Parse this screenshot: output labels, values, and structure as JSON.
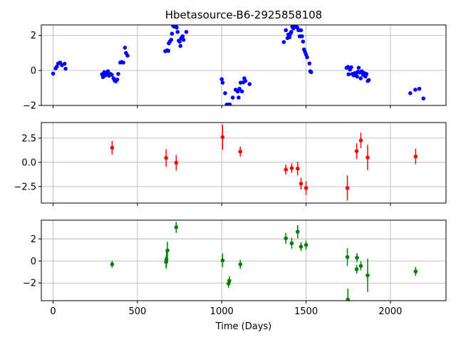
{
  "chart_data": {
    "type": "scatter",
    "title": "Hbetasource-B6-2925858108",
    "xlabel": "Time (Days)",
    "xlim": [
      -70,
      2330
    ],
    "xticks": [
      0,
      500,
      1000,
      1500,
      2000
    ],
    "grid": true,
    "panels": [
      {
        "name": "panel-1",
        "color": "#0000ff",
        "ylim": [
          -2.0,
          2.6
        ],
        "yticks": [
          -2,
          0,
          2
        ],
        "ytick_labels": [
          "−2",
          "0",
          "2"
        ],
        "points": [
          {
            "x": 0,
            "y": -0.18
          },
          {
            "x": 15,
            "y": 0.12
          },
          {
            "x": 22,
            "y": 0.22
          },
          {
            "x": 30,
            "y": 0.4
          },
          {
            "x": 42,
            "y": 0.45
          },
          {
            "x": 52,
            "y": 0.3
          },
          {
            "x": 68,
            "y": 0.38
          },
          {
            "x": 74,
            "y": 0.1
          },
          {
            "x": 290,
            "y": -0.22
          },
          {
            "x": 296,
            "y": -0.38
          },
          {
            "x": 303,
            "y": -0.1
          },
          {
            "x": 310,
            "y": -0.28
          },
          {
            "x": 318,
            "y": -0.15
          },
          {
            "x": 325,
            "y": -0.05
          },
          {
            "x": 332,
            "y": -0.3
          },
          {
            "x": 340,
            "y": -0.2
          },
          {
            "x": 348,
            "y": -0.25
          },
          {
            "x": 358,
            "y": -0.45
          },
          {
            "x": 365,
            "y": -0.58
          },
          {
            "x": 372,
            "y": -0.62
          },
          {
            "x": 380,
            "y": -0.52
          },
          {
            "x": 386,
            "y": -0.2
          },
          {
            "x": 398,
            "y": 0.45
          },
          {
            "x": 406,
            "y": 0.48
          },
          {
            "x": 416,
            "y": 0.45
          },
          {
            "x": 426,
            "y": 1.3
          },
          {
            "x": 432,
            "y": 1.0
          },
          {
            "x": 441,
            "y": 0.85
          },
          {
            "x": 665,
            "y": 1.1
          },
          {
            "x": 676,
            "y": 1.15
          },
          {
            "x": 683,
            "y": 1.12
          },
          {
            "x": 686,
            "y": 1.55
          },
          {
            "x": 692,
            "y": 1.65
          },
          {
            "x": 700,
            "y": 1.75
          },
          {
            "x": 705,
            "y": 2.1
          },
          {
            "x": 712,
            "y": 2.55
          },
          {
            "x": 718,
            "y": 2.5
          },
          {
            "x": 726,
            "y": 2.55
          },
          {
            "x": 733,
            "y": 2.45
          },
          {
            "x": 738,
            "y": 2.2
          },
          {
            "x": 745,
            "y": 1.7
          },
          {
            "x": 750,
            "y": 1.65
          },
          {
            "x": 755,
            "y": 1.4
          },
          {
            "x": 760,
            "y": 1.85
          },
          {
            "x": 768,
            "y": 1.95
          },
          {
            "x": 773,
            "y": 1.75
          },
          {
            "x": 790,
            "y": 2.2
          },
          {
            "x": 1000,
            "y": -0.5
          },
          {
            "x": 1005,
            "y": -0.7
          },
          {
            "x": 1020,
            "y": -1.3
          },
          {
            "x": 1030,
            "y": -1.95
          },
          {
            "x": 1040,
            "y": -1.95
          },
          {
            "x": 1048,
            "y": -1.95
          },
          {
            "x": 1065,
            "y": -1.55
          },
          {
            "x": 1082,
            "y": -1.1
          },
          {
            "x": 1095,
            "y": -1.2
          },
          {
            "x": 1100,
            "y": -1.55
          },
          {
            "x": 1105,
            "y": -1.05
          },
          {
            "x": 1112,
            "y": -0.7
          },
          {
            "x": 1120,
            "y": -1.2
          },
          {
            "x": 1128,
            "y": -0.68
          },
          {
            "x": 1134,
            "y": -0.45
          },
          {
            "x": 1140,
            "y": -0.6
          },
          {
            "x": 1165,
            "y": -0.78
          },
          {
            "x": 1368,
            "y": 1.62
          },
          {
            "x": 1380,
            "y": 2.3
          },
          {
            "x": 1390,
            "y": 1.85
          },
          {
            "x": 1395,
            "y": 2.05
          },
          {
            "x": 1402,
            "y": 1.9
          },
          {
            "x": 1407,
            "y": 2.1
          },
          {
            "x": 1412,
            "y": 2.2
          },
          {
            "x": 1418,
            "y": 2.5
          },
          {
            "x": 1425,
            "y": 2.4
          },
          {
            "x": 1432,
            "y": 2.5
          },
          {
            "x": 1440,
            "y": 2.55
          },
          {
            "x": 1448,
            "y": 2.45
          },
          {
            "x": 1455,
            "y": 2.3
          },
          {
            "x": 1462,
            "y": 1.95
          },
          {
            "x": 1470,
            "y": 2.3
          },
          {
            "x": 1476,
            "y": 1.95
          },
          {
            "x": 1482,
            "y": 1.65
          },
          {
            "x": 1488,
            "y": 1.2
          },
          {
            "x": 1494,
            "y": 1.05
          },
          {
            "x": 1500,
            "y": 0.9
          },
          {
            "x": 1506,
            "y": 0.75
          },
          {
            "x": 1520,
            "y": 0.4
          },
          {
            "x": 1525,
            "y": -0.05
          },
          {
            "x": 1530,
            "y": -0.1
          },
          {
            "x": 1740,
            "y": 0.15
          },
          {
            "x": 1748,
            "y": 0.2
          },
          {
            "x": 1752,
            "y": -0.22
          },
          {
            "x": 1760,
            "y": 0.05
          },
          {
            "x": 1768,
            "y": 0.18
          },
          {
            "x": 1774,
            "y": -0.2
          },
          {
            "x": 1782,
            "y": -0.28
          },
          {
            "x": 1790,
            "y": -0.15
          },
          {
            "x": 1796,
            "y": -0.2
          },
          {
            "x": 1802,
            "y": -0.35
          },
          {
            "x": 1808,
            "y": -0.08
          },
          {
            "x": 1812,
            "y": 0.15
          },
          {
            "x": 1818,
            "y": -0.12
          },
          {
            "x": 1824,
            "y": -0.45
          },
          {
            "x": 1830,
            "y": -0.05
          },
          {
            "x": 1838,
            "y": -0.25
          },
          {
            "x": 1845,
            "y": -0.15
          },
          {
            "x": 1852,
            "y": -0.35
          },
          {
            "x": 1858,
            "y": -0.2
          },
          {
            "x": 1866,
            "y": -0.6
          },
          {
            "x": 1872,
            "y": -0.55
          },
          {
            "x": 2118,
            "y": -1.3
          },
          {
            "x": 2148,
            "y": -1.1
          },
          {
            "x": 2172,
            "y": -1.05
          },
          {
            "x": 2196,
            "y": -1.6
          }
        ]
      },
      {
        "name": "panel-2",
        "color": "#ff0000",
        "ylim": [
          -4.2,
          4.1
        ],
        "yticks": [
          -2.5,
          0,
          2.5
        ],
        "ytick_labels": [
          "−2.5",
          "0.0",
          "2.5"
        ],
        "points": [
          {
            "x": 350,
            "y": 1.5,
            "err": 0.7
          },
          {
            "x": 670,
            "y": 0.45,
            "err": 0.9
          },
          {
            "x": 730,
            "y": -0.05,
            "err": 0.8
          },
          {
            "x": 1005,
            "y": 2.6,
            "err": 1.3
          },
          {
            "x": 1110,
            "y": 1.1,
            "err": 0.5
          },
          {
            "x": 1380,
            "y": -0.75,
            "err": 0.5
          },
          {
            "x": 1415,
            "y": -0.6,
            "err": 0.5
          },
          {
            "x": 1450,
            "y": -0.65,
            "err": 0.7
          },
          {
            "x": 1470,
            "y": -2.2,
            "err": 0.6
          },
          {
            "x": 1500,
            "y": -2.65,
            "err": 0.7
          },
          {
            "x": 1745,
            "y": -2.65,
            "err": 1.3
          },
          {
            "x": 1800,
            "y": 1.15,
            "err": 0.8
          },
          {
            "x": 1825,
            "y": 2.25,
            "err": 0.8
          },
          {
            "x": 1865,
            "y": 0.5,
            "err": 1.3
          },
          {
            "x": 2150,
            "y": 0.6,
            "err": 0.8
          }
        ]
      },
      {
        "name": "panel-3",
        "color": "#008000",
        "ylim": [
          -3.6,
          3.7
        ],
        "yticks": [
          -2,
          0,
          2
        ],
        "ytick_labels": [
          "−2",
          "0",
          "2"
        ],
        "points": [
          {
            "x": 350,
            "y": -0.3,
            "err": 0.3
          },
          {
            "x": 670,
            "y": -0.1,
            "err": 0.6
          },
          {
            "x": 672,
            "y": 0.15,
            "err": 0.7
          },
          {
            "x": 678,
            "y": 0.95,
            "err": 0.8
          },
          {
            "x": 730,
            "y": 3.05,
            "err": 0.5
          },
          {
            "x": 1005,
            "y": 0.05,
            "err": 0.6
          },
          {
            "x": 1040,
            "y": -2.05,
            "err": 0.4
          },
          {
            "x": 1045,
            "y": -1.8,
            "err": 0.4
          },
          {
            "x": 1110,
            "y": -0.3,
            "err": 0.4
          },
          {
            "x": 1380,
            "y": 2.05,
            "err": 0.5
          },
          {
            "x": 1415,
            "y": 1.6,
            "err": 0.5
          },
          {
            "x": 1450,
            "y": 2.65,
            "err": 0.6
          },
          {
            "x": 1470,
            "y": 1.3,
            "err": 0.4
          },
          {
            "x": 1500,
            "y": 1.45,
            "err": 0.4
          },
          {
            "x": 1745,
            "y": 0.35,
            "err": 0.8
          },
          {
            "x": 1748,
            "y": -3.5,
            "err": 1.0
          },
          {
            "x": 1800,
            "y": -0.75,
            "err": 0.4
          },
          {
            "x": 1802,
            "y": 0.3,
            "err": 0.4
          },
          {
            "x": 1825,
            "y": -0.45,
            "err": 0.4
          },
          {
            "x": 1865,
            "y": -1.3,
            "err": 1.5
          },
          {
            "x": 2150,
            "y": -0.95,
            "err": 0.4
          }
        ]
      }
    ]
  }
}
